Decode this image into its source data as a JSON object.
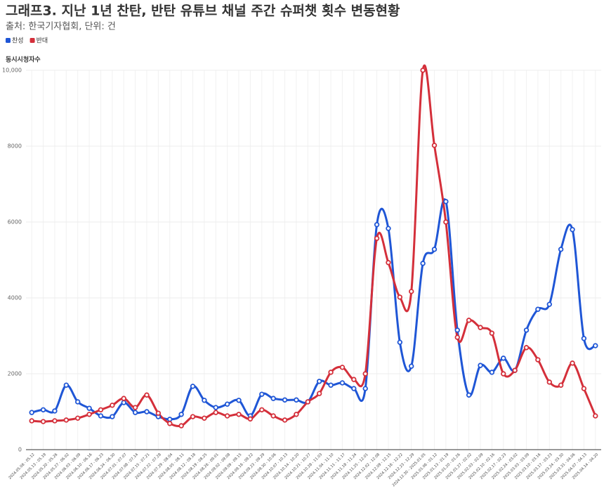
{
  "chart_data": {
    "type": "line",
    "title": "그래프3. 지난 1년 찬탄, 반탄 유튜브 채널 주간 슈퍼챗 횟수 변동현황",
    "subtitle": "출처: 한국기자협회, 단위: 건",
    "y_label": "동시시청자수",
    "categories": [
      "2024.05.06 - 05.12",
      "2024.05.13 - 05.19",
      "2024.05.20 - 05.26",
      "2024.05.27 - 06.02",
      "2024.06.03 - 06.09",
      "2024.06.10 - 06.16",
      "2024.06.17 - 06.23",
      "2024.06.24 - 06.30",
      "2024.07.01 - 07.07",
      "2024.07.08 - 07.14",
      "2024.07.15 - 07.21",
      "2024.07.22 - 07.28",
      "2024.07.29 - 08.04",
      "2024.08.05 - 08.11",
      "2024.08.12 - 08.18",
      "2024.08.19 - 08.25",
      "2024.08.26 - 09.01",
      "2024.09.02 - 09.08",
      "2024.09.09 - 09.15",
      "2024.09.16 - 09.22",
      "2024.09.23 - 09.29",
      "2024.09.30 - 10.06",
      "2024.10.07 - 10.13",
      "2024.10.14 - 10.20",
      "2024.10.21 - 10.27",
      "2024.10.28 - 11.03",
      "2024.11.04 - 11.10",
      "2024.11.11 - 11.17",
      "2024.11.18 - 11.24",
      "2024.11.25 - 12.01",
      "2024.12.02 - 12.08",
      "2024.12.09 - 12.15",
      "2024.12.16 - 12.22",
      "2024.12.23 - 12.29",
      "2024.12.30 - 2025.01.05",
      "2025.01.06 - 01.12",
      "2025.01.13 - 01.19",
      "2025.01.20 - 01.26",
      "2025.01.27 - 02.02",
      "2025.02.03 - 02.09",
      "2025.02.10 - 02.16",
      "2025.02.17 - 02.23",
      "2025.02.24 - 03.02",
      "2025.03.03 - 03.09",
      "2025.03.10 - 03.16",
      "2025.03.17 - 03.23",
      "2025.03.24 - 03.30",
      "2025.03.31 - 04.06",
      "2025.04.07 - 04.13",
      "2025.04.14 - 04.20"
    ],
    "series": [
      {
        "name": "찬성",
        "color": "#1f56d6",
        "values": [
          980,
          1050,
          1020,
          1700,
          1260,
          1090,
          890,
          870,
          1240,
          980,
          1000,
          870,
          800,
          930,
          1670,
          1300,
          1110,
          1200,
          1300,
          890,
          1460,
          1350,
          1310,
          1310,
          1260,
          1800,
          1700,
          1760,
          1610,
          1610,
          5930,
          5830,
          2830,
          2200,
          4910,
          5280,
          6540,
          3150,
          1440,
          2220,
          2040,
          2410,
          2090,
          3150,
          3700,
          3830,
          5280,
          5800,
          2930,
          2740
        ]
      },
      {
        "name": "반대",
        "color": "#d42f3a",
        "values": [
          760,
          740,
          760,
          780,
          830,
          930,
          1050,
          1170,
          1350,
          1110,
          1440,
          960,
          690,
          630,
          870,
          830,
          980,
          890,
          930,
          810,
          1050,
          890,
          780,
          930,
          1260,
          1480,
          2040,
          2170,
          1850,
          2000,
          5570,
          4930,
          4020,
          4170,
          10000,
          8020,
          6000,
          2960,
          3410,
          3220,
          3070,
          2000,
          2090,
          2690,
          2370,
          1780,
          1700,
          2280,
          1610,
          890
        ]
      }
    ],
    "ylim": [
      0,
      10000
    ],
    "yticks": [
      0,
      2000,
      4000,
      6000,
      8000,
      {
        "value": 10000,
        "label": "10,000"
      }
    ],
    "grid": true
  }
}
